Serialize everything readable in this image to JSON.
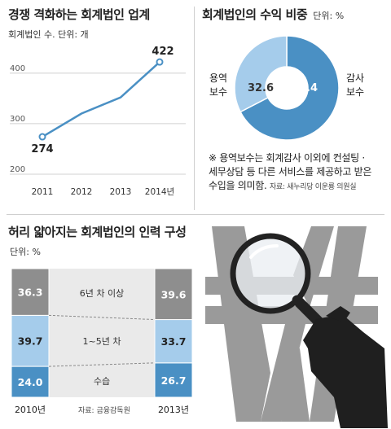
{
  "line_panel": {
    "title": "경쟁 격화하는 회계법인 업계",
    "subtitle": "회계법인 수. 단위: 개"
  },
  "pie_panel": {
    "title": "회계법인의 수익 비중",
    "unit": "단위: %",
    "note_line1": "※ 용역보수는 회계감사 이외에 컨설팅 ·",
    "note_line2": "세무상담 등 다른 서비스를 제공하고 받은",
    "note_line3": "수입을 의미함.",
    "source": "자료: 새누리당 이운룡 의원실"
  },
  "bar_panel": {
    "title": "허리 얇아지는 회계법인의 인력 구성",
    "unit": "단위: %",
    "source": "자료: 금융감독원"
  },
  "colors": {
    "line": "#4a90c4",
    "dark_gray": "#8e8e8e",
    "light_blue": "#a5cceb",
    "mid_blue": "#4a90c4",
    "shade": "#eaeaea"
  },
  "chart_data": [
    {
      "type": "line",
      "title": "경쟁 격화하는 회계법인 업계",
      "subtitle": "회계법인 수. 단위: 개",
      "x": [
        "2011",
        "2012",
        "2013",
        "2014년"
      ],
      "values": [
        274,
        320,
        352,
        422
      ],
      "data_labels": {
        "0": "274",
        "3": "422"
      },
      "yticks": [
        200,
        300,
        400
      ],
      "ylim": [
        200,
        440
      ]
    },
    {
      "type": "pie",
      "title": "회계법인의 수익 비중",
      "unit": "단위: %",
      "slices": [
        {
          "label": "감사\n보수",
          "value": 67.4,
          "value_label": "67.4",
          "color": "#4a90c4"
        },
        {
          "label": "용역\n보수",
          "value": 32.6,
          "value_label": "32.6",
          "color": "#a5cceb"
        }
      ]
    },
    {
      "type": "bar",
      "title": "허리 얇아지는 회계법인의 인력 구성",
      "unit": "단위: %",
      "categories": [
        "2010년",
        "2013년"
      ],
      "series": [
        {
          "name": "수습",
          "values": [
            24.0,
            26.7
          ],
          "value_labels": [
            "24.0",
            "26.7"
          ],
          "color": "#4a90c4"
        },
        {
          "name": "1~5년 차",
          "values": [
            39.7,
            33.7
          ],
          "value_labels": [
            "39.7",
            "33.7"
          ],
          "color": "#a5cceb"
        },
        {
          "name": "6년 차 이상",
          "values": [
            36.3,
            39.6
          ],
          "value_labels": [
            "36.3",
            "39.6"
          ],
          "color": "#8e8e8e"
        }
      ],
      "stacked": true
    }
  ]
}
